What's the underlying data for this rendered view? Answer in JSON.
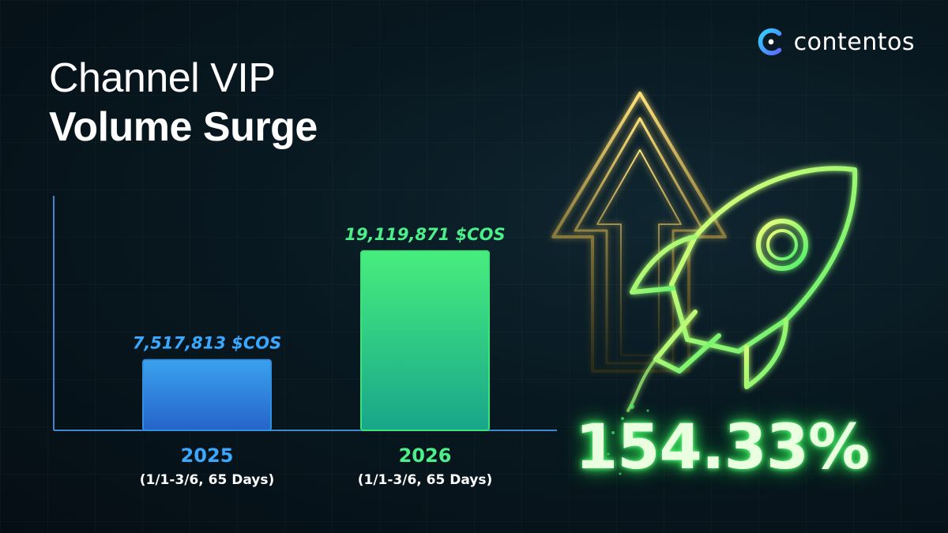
{
  "brand": {
    "name": "contentos",
    "logo_icon": "contentos-c-logo"
  },
  "title": {
    "line1": "Channel VIP",
    "line2": "Volume Surge"
  },
  "growth": {
    "label": "154.33%"
  },
  "colors": {
    "bar_2025": "#2f8fe0",
    "bar_2026": "#3ee27a",
    "label_2025": "#3aa8ff",
    "label_2026": "#4cf08a",
    "accent": "#5dff7a"
  },
  "chart_data": {
    "type": "bar",
    "categories": [
      "2025",
      "2026"
    ],
    "category_sublabels": [
      "(1/1-3/6, 65 Days)",
      "(1/1-3/6, 65 Days)"
    ],
    "values": [
      7517813,
      19119871
    ],
    "data_labels": [
      "7,517,813 $COS",
      "19,119,871 $COS"
    ],
    "unit": "$COS",
    "title": "Channel VIP Volume Surge",
    "xlabel": "",
    "ylabel": "",
    "ylim": [
      0,
      25000000
    ],
    "grid": false
  }
}
